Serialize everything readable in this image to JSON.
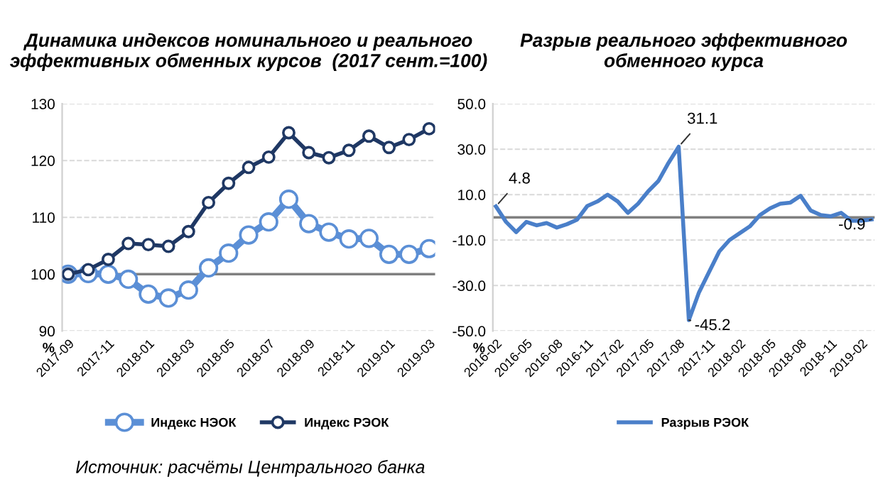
{
  "chart_data": [
    {
      "type": "line",
      "title": "Динамика индексов номинального и реального эффективных обменных курсов  (2017 сент.=100)",
      "ylabel": "%",
      "categories": [
        "2017-09",
        null,
        "2017-11",
        null,
        "2018-01",
        null,
        "2018-03",
        null,
        "2018-05",
        null,
        "2018-07",
        null,
        "2018-09",
        null,
        "2018-11",
        null,
        "2019-01",
        null,
        "2019-03"
      ],
      "series": [
        {
          "name": "Индекс НЭОК",
          "color": "#5b8fd6",
          "values": [
            100.0,
            100.1,
            100.0,
            99.1,
            96.5,
            95.8,
            97.2,
            101.1,
            103.7,
            106.9,
            109.2,
            113.2,
            108.9,
            107.4,
            106.2,
            106.3,
            103.5,
            103.5,
            104.5
          ]
        },
        {
          "name": "Индекс РЭОК",
          "color": "#1f3864",
          "values": [
            100.0,
            100.8,
            102.6,
            105.4,
            105.2,
            104.9,
            107.5,
            112.6,
            116.0,
            118.8,
            120.6,
            124.9,
            121.4,
            120.5,
            121.8,
            124.3,
            122.3,
            123.7,
            125.6
          ]
        }
      ],
      "ylim": [
        90,
        130
      ],
      "yticks": [
        90,
        100,
        110,
        120,
        130
      ],
      "grid": "y",
      "legend": "bottom",
      "marker": "circle",
      "line_style": "solid",
      "ref_lines": [
        {
          "axis": "y",
          "value": 100,
          "color": "#808080"
        }
      ],
      "annotations": [
        "Источник: расчёты Центрального банка"
      ]
    },
    {
      "type": "line",
      "title": "Разрыв реального эффективного обменного курса",
      "ylabel": "%",
      "categories": [
        "2016-02",
        null,
        null,
        "2016-05",
        null,
        null,
        "2016-08",
        null,
        null,
        "2016-11",
        null,
        null,
        "2017-02",
        null,
        null,
        "2017-05",
        null,
        null,
        "2017-08",
        null,
        null,
        "2017-11",
        null,
        null,
        "2018-02",
        null,
        null,
        "2018-05",
        null,
        null,
        "2018-08",
        null,
        null,
        "2018-11",
        null,
        null,
        "2019-02",
        null
      ],
      "series": [
        {
          "name": "Разрыв РЭОК",
          "color": "#4a7fc9",
          "values": [
            4.8,
            -2,
            -6.5,
            -2,
            -3.5,
            -2.5,
            -4.5,
            -3,
            -1,
            5,
            7,
            10,
            7,
            2,
            6,
            11.5,
            16,
            24,
            31.1,
            -45.2,
            -33,
            -24,
            -15,
            -10,
            -7,
            -4,
            1,
            4,
            6,
            6.5,
            9.5,
            3,
            1,
            0.5,
            2,
            -1.5,
            -1.5,
            -0.9
          ],
          "value_labels": [
            "4.8",
            null,
            null,
            null,
            null,
            null,
            null,
            null,
            null,
            null,
            null,
            null,
            null,
            null,
            null,
            null,
            null,
            null,
            "31.1",
            "-45.2",
            null,
            null,
            null,
            null,
            null,
            null,
            null,
            null,
            null,
            null,
            null,
            null,
            null,
            null,
            null,
            null,
            null,
            "-0.9"
          ]
        }
      ],
      "ylim": [
        -50,
        50
      ],
      "yticks": [
        {
          "value": -50,
          "label": "-50.0"
        },
        {
          "value": -30,
          "label": "-30.0"
        },
        {
          "value": -10,
          "label": "-10.0"
        },
        {
          "value": 10,
          "label": "10.0"
        },
        {
          "value": 30,
          "label": "30.0"
        },
        {
          "value": 50,
          "label": "50.0"
        }
      ],
      "grid": "y",
      "legend": "bottom",
      "marker": "none",
      "line_style": "solid",
      "ref_lines": [
        {
          "axis": "y",
          "value": 0,
          "color": "#808080"
        }
      ]
    }
  ]
}
